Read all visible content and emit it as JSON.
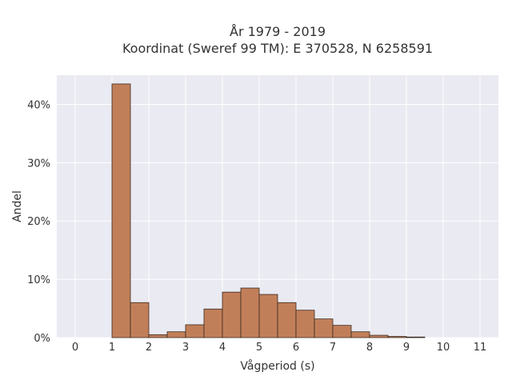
{
  "chart_data": {
    "type": "bar",
    "title": "År 1979 - 2019",
    "subtitle": "Koordinat (Sweref 99 TM): E 370528, N 6258591",
    "xlabel": "Vågperiod (s)",
    "ylabel": "Andel",
    "x_ticks": [
      "0",
      "1",
      "2",
      "3",
      "4",
      "5",
      "6",
      "7",
      "8",
      "9",
      "10",
      "11"
    ],
    "y_ticks": [
      "0%",
      "10%",
      "20%",
      "30%",
      "40%"
    ],
    "xlim": [
      -0.5,
      11.5
    ],
    "ylim": [
      0,
      45
    ],
    "grid": true,
    "bin_width": 0.5,
    "bins": [
      {
        "start": 1.0,
        "value": 43.5
      },
      {
        "start": 1.5,
        "value": 6.0
      },
      {
        "start": 2.0,
        "value": 0.5
      },
      {
        "start": 2.5,
        "value": 1.0
      },
      {
        "start": 3.0,
        "value": 2.2
      },
      {
        "start": 3.5,
        "value": 4.9
      },
      {
        "start": 4.0,
        "value": 7.8
      },
      {
        "start": 4.5,
        "value": 8.5
      },
      {
        "start": 5.0,
        "value": 7.4
      },
      {
        "start": 5.5,
        "value": 6.0
      },
      {
        "start": 6.0,
        "value": 4.7
      },
      {
        "start": 6.5,
        "value": 3.2
      },
      {
        "start": 7.0,
        "value": 2.1
      },
      {
        "start": 7.5,
        "value": 1.0
      },
      {
        "start": 8.0,
        "value": 0.4
      },
      {
        "start": 8.5,
        "value": 0.2
      },
      {
        "start": 9.0,
        "value": 0.1
      }
    ],
    "colors": {
      "bar_fill": "#c17f59",
      "bar_edge": "#3a2a20",
      "plot_bg": "#eaeaf2",
      "grid": "#ffffff"
    }
  }
}
